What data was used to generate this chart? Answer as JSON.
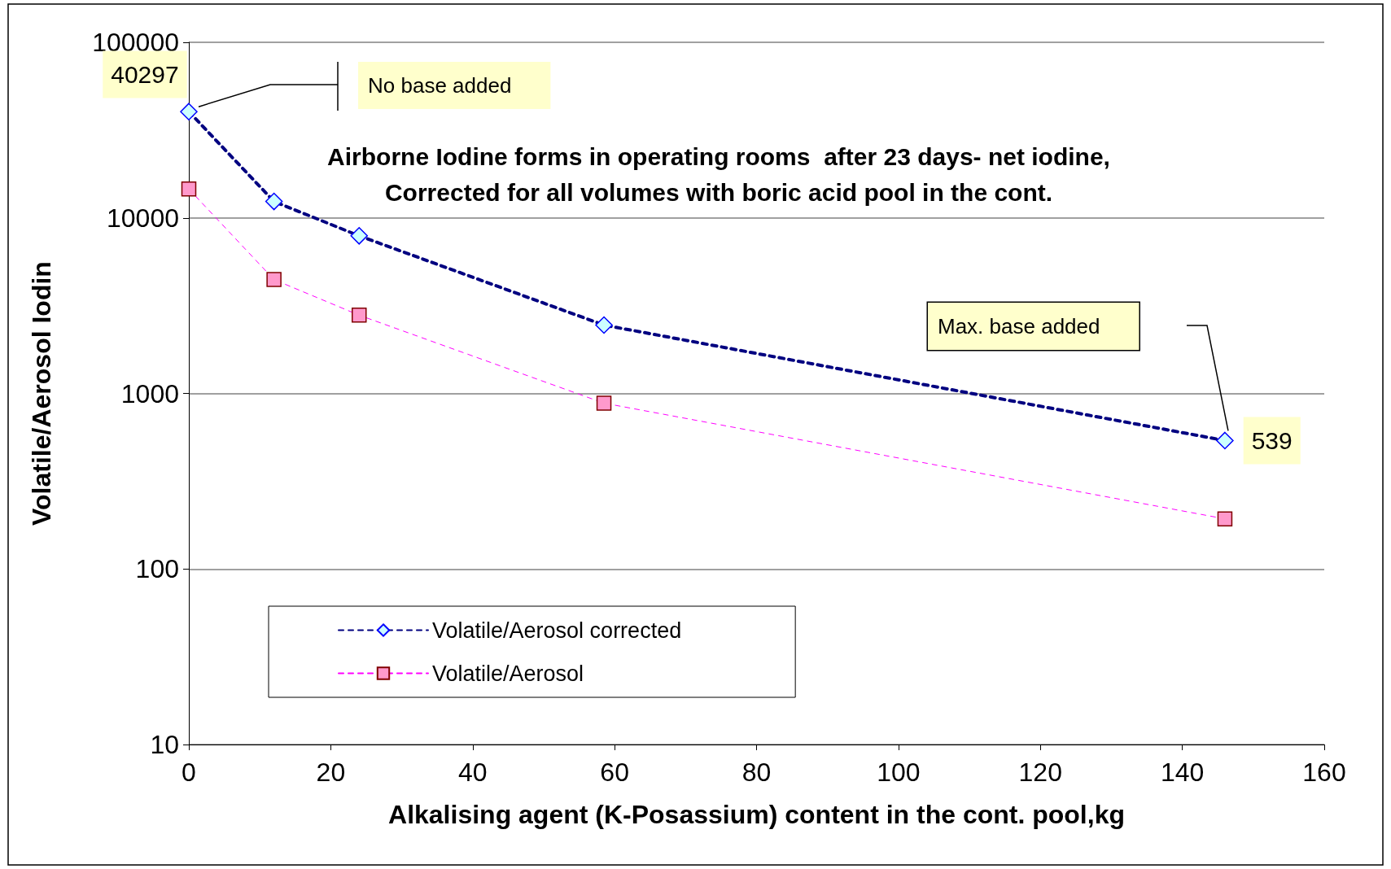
{
  "chart_data": {
    "type": "line",
    "title": "Airborne Iodine forms in operating rooms  after 23 days- net iodine,\nCorrected for all volumes with boric acid pool in the cont.",
    "xlabel": "Alkalising agent (K-Posassium) content in the cont. pool,kg",
    "ylabel": "Volatile/Aerosol Iodin",
    "x": [
      0,
      12,
      24,
      58.5,
      146
    ],
    "series": [
      {
        "name": "Volatile/Aerosol corrected",
        "color": "#000080",
        "marker": "diamond",
        "line_style": "dashed",
        "values": [
          40297,
          12400,
          7900,
          2450,
          539
        ],
        "value_labels": [
          "40297",
          null,
          null,
          null,
          "539"
        ]
      },
      {
        "name": "Volatile/Aerosol",
        "color": "#ff00ff",
        "marker": "square",
        "line_style": "dashed",
        "values": [
          14600,
          4450,
          2790,
          880,
          193
        ]
      }
    ],
    "annotations": [
      "No base added",
      "Max. base added"
    ],
    "xlim": [
      0,
      160
    ],
    "xticks": [
      0,
      20,
      40,
      60,
      80,
      100,
      120,
      140,
      160
    ],
    "ylim": [
      10,
      100000
    ],
    "yticks": [
      10,
      100,
      1000,
      10000,
      100000
    ],
    "log": "y",
    "grid": "y",
    "legend": "bottom left"
  }
}
